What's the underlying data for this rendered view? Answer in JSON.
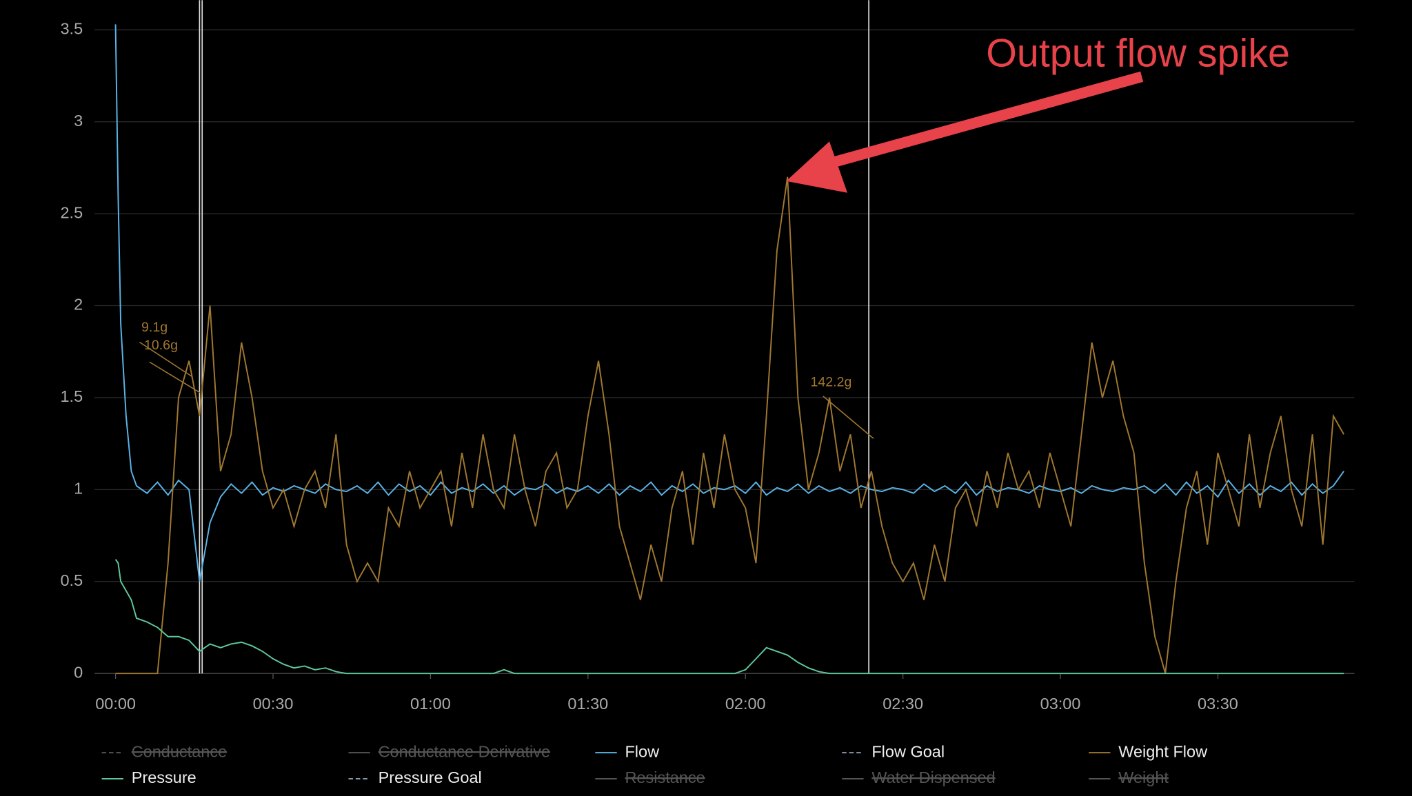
{
  "chart_data": {
    "type": "line",
    "annotation": "Output flow spike",
    "weight_labels": [
      "9.1g",
      "10.6g",
      "142.2g"
    ],
    "event_markers": [
      16,
      16.5,
      143.5
    ],
    "xlim": [
      -4,
      236
    ],
    "ylim": [
      0,
      3.5
    ],
    "yticks": [
      0,
      0.5,
      1,
      1.5,
      2,
      2.5,
      3,
      3.5
    ],
    "xticks": [
      {
        "value": 0,
        "label": "00:00"
      },
      {
        "value": 30,
        "label": "00:30"
      },
      {
        "value": 60,
        "label": "01:00"
      },
      {
        "value": 90,
        "label": "01:30"
      },
      {
        "value": 120,
        "label": "02:00"
      },
      {
        "value": 150,
        "label": "02:30"
      },
      {
        "value": 180,
        "label": "03:00"
      },
      {
        "value": 210,
        "label": "03:30"
      }
    ],
    "grid": true,
    "x": [
      0,
      0.5,
      1,
      2,
      3,
      4,
      6,
      8,
      10,
      12,
      14,
      16,
      18,
      20,
      22,
      24,
      26,
      28,
      30,
      32,
      34,
      36,
      38,
      40,
      42,
      44,
      46,
      48,
      50,
      52,
      54,
      56,
      58,
      60,
      62,
      64,
      66,
      68,
      70,
      72,
      74,
      76,
      78,
      80,
      82,
      84,
      86,
      88,
      90,
      92,
      94,
      96,
      98,
      100,
      102,
      104,
      106,
      108,
      110,
      112,
      114,
      116,
      118,
      120,
      122,
      124,
      126,
      128,
      130,
      132,
      134,
      136,
      138,
      140,
      142,
      144,
      146,
      148,
      150,
      152,
      154,
      156,
      158,
      160,
      162,
      164,
      166,
      168,
      170,
      172,
      174,
      176,
      178,
      180,
      182,
      184,
      186,
      188,
      190,
      192,
      194,
      196,
      198,
      200,
      202,
      204,
      206,
      208,
      210,
      212,
      214,
      216,
      218,
      220,
      222,
      224,
      226,
      228,
      230,
      232,
      234
    ],
    "series": [
      {
        "name": "Conductance",
        "color": "#555555",
        "dashed": true,
        "hidden": true
      },
      {
        "name": "Conductance Derivative",
        "color": "#555555",
        "dashed": false,
        "hidden": true
      },
      {
        "name": "Flow",
        "color": "#5ab4e8",
        "dashed": false,
        "hidden": false,
        "values": [
          3.53,
          2.6,
          1.9,
          1.4,
          1.1,
          1.02,
          0.98,
          1.04,
          0.97,
          1.05,
          1.0,
          0.5,
          0.82,
          0.96,
          1.03,
          0.98,
          1.04,
          0.97,
          1.01,
          0.99,
          1.02,
          1.0,
          0.98,
          1.03,
          1.0,
          0.99,
          1.02,
          0.98,
          1.04,
          0.97,
          1.03,
          0.99,
          1.02,
          0.97,
          1.04,
          0.98,
          1.01,
          0.99,
          1.03,
          0.98,
          1.02,
          0.97,
          1.01,
          1.0,
          1.03,
          0.98,
          1.01,
          0.99,
          1.02,
          0.98,
          1.03,
          0.97,
          1.02,
          0.99,
          1.04,
          0.97,
          1.02,
          0.99,
          1.03,
          0.98,
          1.01,
          1.0,
          1.02,
          0.98,
          1.04,
          0.97,
          1.01,
          0.99,
          1.03,
          0.98,
          1.02,
          0.99,
          1.01,
          0.98,
          1.02,
          1.0,
          0.99,
          1.01,
          1.0,
          0.98,
          1.03,
          0.99,
          1.02,
          0.98,
          1.04,
          0.97,
          1.02,
          0.99,
          1.01,
          1.0,
          0.98,
          1.02,
          1.0,
          0.99,
          1.01,
          0.98,
          1.02,
          1.0,
          0.99,
          1.01,
          1.0,
          1.02,
          0.98,
          1.03,
          0.97,
          1.04,
          0.98,
          1.02,
          0.96,
          1.05,
          0.98,
          1.03,
          0.97,
          1.02,
          0.99,
          1.04,
          0.97,
          1.03,
          0.98,
          1.02,
          1.1
        ]
      },
      {
        "name": "Flow Goal",
        "color": "#8899aa",
        "dashed": true,
        "hidden": false
      },
      {
        "name": "Weight Flow",
        "color": "#a07830",
        "dashed": false,
        "hidden": false,
        "values": [
          0,
          0,
          0,
          0,
          0,
          0,
          0,
          0,
          0.6,
          1.5,
          1.7,
          1.4,
          2.0,
          1.1,
          1.3,
          1.8,
          1.5,
          1.1,
          0.9,
          1.0,
          0.8,
          1.0,
          1.1,
          0.9,
          1.3,
          0.7,
          0.5,
          0.6,
          0.5,
          0.9,
          0.8,
          1.1,
          0.9,
          1.0,
          1.1,
          0.8,
          1.2,
          0.9,
          1.3,
          1.0,
          0.9,
          1.3,
          1.0,
          0.8,
          1.1,
          1.2,
          0.9,
          1.0,
          1.4,
          1.7,
          1.3,
          0.8,
          0.6,
          0.4,
          0.7,
          0.5,
          0.9,
          1.1,
          0.7,
          1.2,
          0.9,
          1.3,
          1.0,
          0.9,
          0.6,
          1.4,
          2.3,
          2.7,
          1.5,
          1.0,
          1.2,
          1.5,
          1.1,
          1.3,
          0.9,
          1.1,
          0.8,
          0.6,
          0.5,
          0.6,
          0.4,
          0.7,
          0.5,
          0.9,
          1.0,
          0.8,
          1.1,
          0.9,
          1.2,
          1.0,
          1.1,
          0.9,
          1.2,
          1.0,
          0.8,
          1.3,
          1.8,
          1.5,
          1.7,
          1.4,
          1.2,
          0.6,
          0.2,
          0.0,
          0.5,
          0.9,
          1.1,
          0.7,
          1.2,
          1.0,
          0.8,
          1.3,
          0.9,
          1.2,
          1.4,
          1.0,
          0.8,
          1.3,
          0.7,
          1.4,
          1.3
        ]
      },
      {
        "name": "Pressure",
        "color": "#5fc99a",
        "dashed": false,
        "hidden": false,
        "values": [
          0.62,
          0.6,
          0.5,
          0.45,
          0.4,
          0.3,
          0.28,
          0.25,
          0.2,
          0.2,
          0.18,
          0.12,
          0.16,
          0.14,
          0.16,
          0.17,
          0.15,
          0.12,
          0.08,
          0.05,
          0.03,
          0.04,
          0.02,
          0.03,
          0.01,
          0,
          0,
          0,
          0,
          0,
          0,
          0,
          0,
          0,
          0,
          0,
          0,
          0,
          0,
          0,
          0.02,
          0,
          0,
          0,
          0,
          0,
          0,
          0,
          0,
          0,
          0,
          0,
          0,
          0,
          0,
          0,
          0,
          0,
          0,
          0,
          0,
          0,
          0,
          0.02,
          0.08,
          0.14,
          0.12,
          0.1,
          0.06,
          0.03,
          0.01,
          0,
          0,
          0,
          0,
          0,
          0,
          0,
          0,
          0,
          0,
          0,
          0,
          0,
          0,
          0,
          0,
          0,
          0,
          0,
          0,
          0,
          0,
          0,
          0,
          0,
          0,
          0,
          0,
          0,
          0,
          0,
          0,
          0,
          0,
          0,
          0,
          0,
          0,
          0,
          0,
          0,
          0,
          0,
          0,
          0,
          0,
          0,
          0,
          0,
          0
        ]
      },
      {
        "name": "Pressure Goal",
        "color": "#8899aa",
        "dashed": true,
        "hidden": false
      },
      {
        "name": "Resistance",
        "color": "#555555",
        "dashed": false,
        "hidden": true
      },
      {
        "name": "Water Dispensed",
        "color": "#555555",
        "dashed": false,
        "hidden": true
      },
      {
        "name": "Weight",
        "color": "#555555",
        "dashed": false,
        "hidden": true
      }
    ]
  }
}
